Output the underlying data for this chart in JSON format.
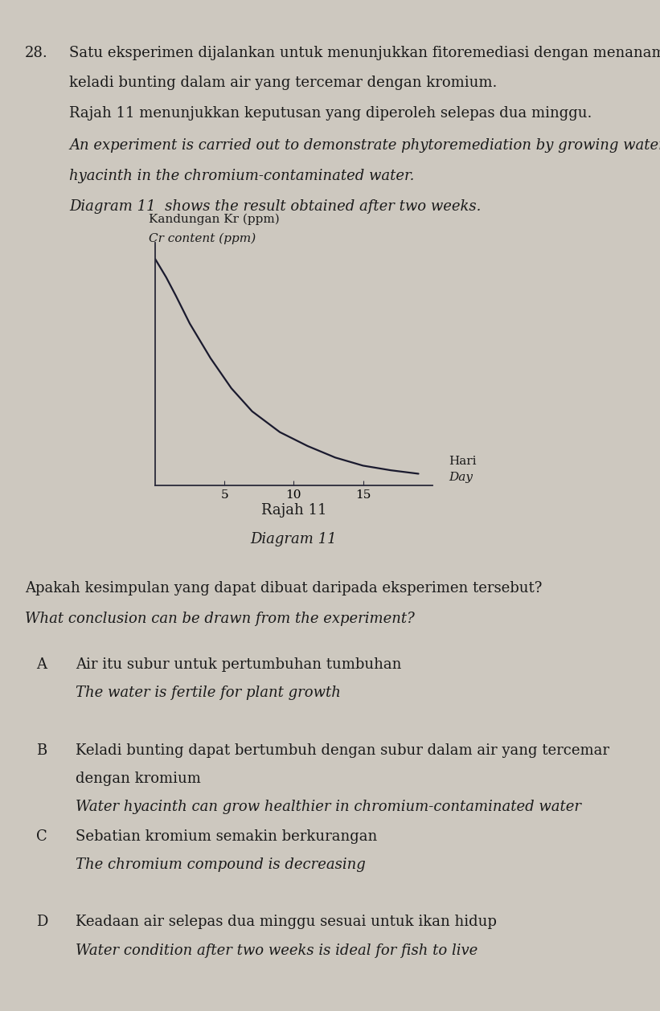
{
  "background_color": "#cdc8bf",
  "question_number": "28.",
  "text_lines_malay": [
    "Satu eksperimen dijalankan untuk menunjukkan fitoremediasi dengan menanam",
    "keladi bunting dalam air yang tercemar dengan kromium.",
    "Rajah 11 menunjukkan keputusan yang diperoleh selepas dua minggu."
  ],
  "text_lines_english": [
    "An experiment is carried out to demonstrate phytoremediation by growing water",
    "hyacinth in the chromium-contaminated water.",
    "Diagram 11  shows the result obtained after two weeks."
  ],
  "ylabel_malay": "Kandungan Kr (ppm)",
  "ylabel_english": "Cr content (ppm)",
  "xlabel_malay": "Hari",
  "xlabel_english": "Day",
  "x_ticks": [
    5,
    10,
    15
  ],
  "diagram_title_malay": "Rajah 11",
  "diagram_title_english": "Diagram 11",
  "question_malay": "Apakah kesimpulan yang dapat dibuat daripada eksperimen tersebut?",
  "question_english": "What conclusion can be drawn from the experiment?",
  "options": [
    {
      "letter": "A",
      "malay": "Air itu subur untuk pertumbuhan tumbuhan",
      "english": "The water is fertile for plant growth"
    },
    {
      "letter": "B",
      "malay": "Keladi bunting dapat bertumbuh dengan subur dalam air yang tercemar",
      "malay2": "dengan kromium",
      "english": "Water hyacinth can grow healthier in chromium-contaminated water"
    },
    {
      "letter": "C",
      "malay": "Sebatian kromium semakin berkurangan",
      "malay2": "",
      "english": "The chromium compound is decreasing"
    },
    {
      "letter": "D",
      "malay": "Keadaan air selepas dua minggu sesuai untuk ikan hidup",
      "malay2": "",
      "english": "Water condition after two weeks is ideal for fish to live"
    }
  ],
  "curve_x": [
    0.0,
    0.3,
    0.8,
    1.5,
    2.5,
    4.0,
    5.5,
    7.0,
    9.0,
    11.0,
    13.0,
    15.0,
    17.0,
    19.0
  ],
  "curve_y": [
    9.8,
    9.5,
    9.0,
    8.2,
    7.0,
    5.5,
    4.2,
    3.2,
    2.3,
    1.7,
    1.2,
    0.85,
    0.65,
    0.5
  ],
  "curve_color": "#1a1a2e",
  "axis_color": "#2a2a3a",
  "text_color": "#1a1a1a",
  "font_size_body": 13,
  "font_size_small": 11
}
